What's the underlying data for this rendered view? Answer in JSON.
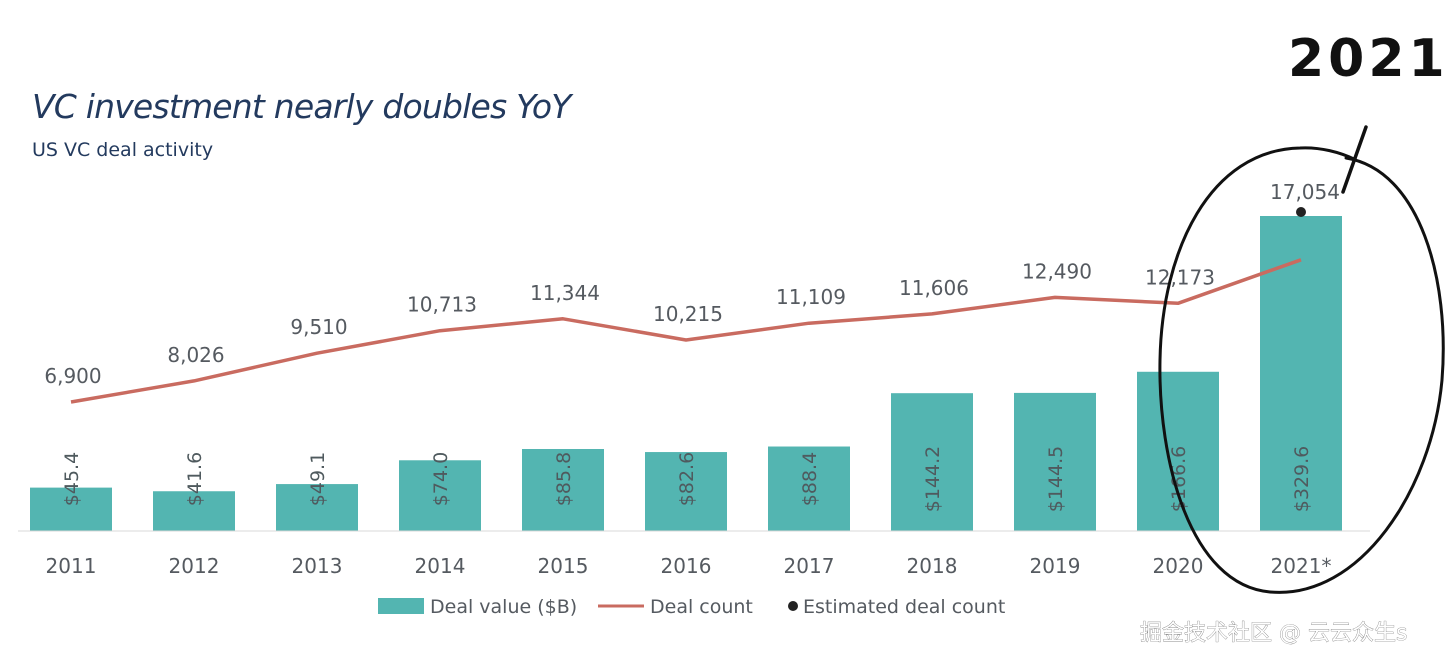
{
  "chart_data": {
    "type": "bar",
    "title": "VC investment nearly doubles YoY",
    "subtitle": "US VC deal activity",
    "categories": [
      "2011",
      "2012",
      "2013",
      "2014",
      "2015",
      "2016",
      "2017",
      "2018",
      "2019",
      "2020",
      "2021*"
    ],
    "series": [
      {
        "name": "Deal value ($B)",
        "type": "bar",
        "values": [
          45.4,
          41.6,
          49.1,
          74.0,
          85.8,
          82.6,
          88.4,
          144.2,
          144.5,
          166.6,
          329.6
        ],
        "labels": [
          "$45.4",
          "$41.6",
          "$49.1",
          "$74.0",
          "$85.8",
          "$82.6",
          "$88.4",
          "$144.2",
          "$144.5",
          "$166.6",
          "$329.6"
        ],
        "color": "#53b5b1"
      },
      {
        "name": "Deal count",
        "type": "line",
        "values": [
          6900,
          8026,
          9510,
          10713,
          11344,
          10215,
          11109,
          11606,
          12490,
          12173,
          14500
        ],
        "labels": [
          "6,900",
          "8,026",
          "9,510",
          "10,713",
          "11,344",
          "10,215",
          "11,109",
          "11,606",
          "12,490",
          "12,173",
          ""
        ],
        "color": "#c96b60"
      },
      {
        "name": "Estimated deal count",
        "type": "scatter",
        "values": [
          null,
          null,
          null,
          null,
          null,
          null,
          null,
          null,
          null,
          null,
          17054
        ],
        "labels": [
          "",
          "",
          "",
          "",
          "",
          "",
          "",
          "",
          "",
          "",
          "17,054"
        ],
        "color": "#222222"
      }
    ],
    "legend": [
      "Deal value ($B)",
      "Deal count",
      "Estimated deal count"
    ],
    "legend_position": "bottom-center",
    "annotations": {
      "handwritten_text": "2021",
      "circled_category": "2021*"
    }
  },
  "watermark": "掘金技术社区 @ 云云众生s"
}
